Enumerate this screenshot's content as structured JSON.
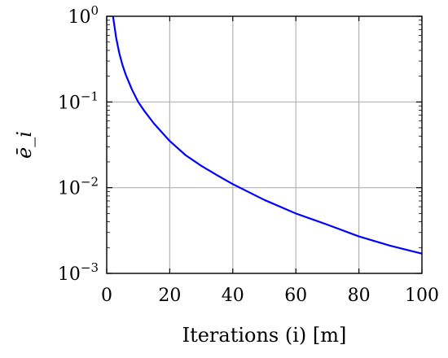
{
  "chart_data": {
    "type": "line",
    "title": "",
    "xlabel": "Iterations (i) [m]",
    "ylabel": "ē_i",
    "x_scale": "linear",
    "y_scale": "log",
    "xlim": [
      0,
      100
    ],
    "ylim": [
      0.001,
      1
    ],
    "grid": true,
    "x_ticks": [
      0,
      20,
      40,
      60,
      80,
      100
    ],
    "x_tick_labels": [
      "0",
      "20",
      "40",
      "60",
      "80",
      "100"
    ],
    "y_ticks": [
      0.001,
      0.01,
      0.1,
      1
    ],
    "y_tick_labels": [
      {
        "base": "10",
        "exp": "−3"
      },
      {
        "base": "10",
        "exp": "−2"
      },
      {
        "base": "10",
        "exp": "−1"
      },
      {
        "base": "10",
        "exp": "0"
      }
    ],
    "series": [
      {
        "color": "#0000ff",
        "x": [
          2,
          3,
          4,
          5,
          6,
          8,
          10,
          12,
          15,
          20,
          25,
          30,
          35,
          40,
          50,
          60,
          70,
          80,
          90,
          100
        ],
        "y": [
          1.0,
          0.56,
          0.37,
          0.27,
          0.21,
          0.14,
          0.1,
          0.078,
          0.056,
          0.035,
          0.024,
          0.018,
          0.014,
          0.011,
          0.0072,
          0.005,
          0.0037,
          0.0027,
          0.0021,
          0.0017
        ]
      }
    ]
  }
}
